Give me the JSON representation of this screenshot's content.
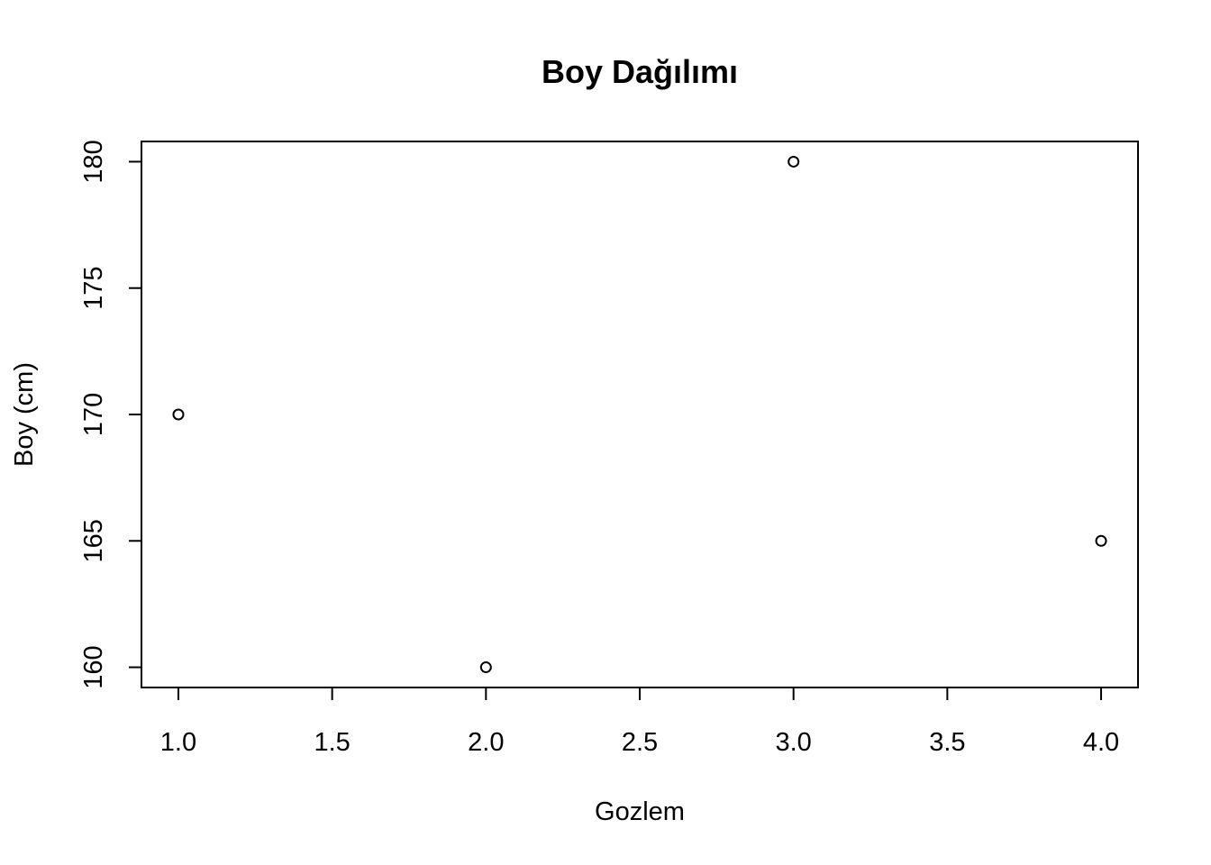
{
  "chart_data": {
    "type": "scatter",
    "title": "Boy Dağılımı",
    "xlabel": "Gozlem",
    "ylabel": "Boy (cm)",
    "x": [
      1,
      2,
      3,
      4
    ],
    "y": [
      170,
      160,
      180,
      165
    ],
    "xlim": [
      0.88,
      4.12
    ],
    "ylim": [
      159.2,
      180.8
    ],
    "x_ticks": [
      "1.0",
      "1.5",
      "2.0",
      "2.5",
      "3.0",
      "3.5",
      "4.0"
    ],
    "y_ticks": [
      "160",
      "165",
      "170",
      "175",
      "180"
    ],
    "grid": false,
    "marker": "open-circle",
    "colors": {
      "foreground": "#000000",
      "background": "#ffffff"
    }
  }
}
